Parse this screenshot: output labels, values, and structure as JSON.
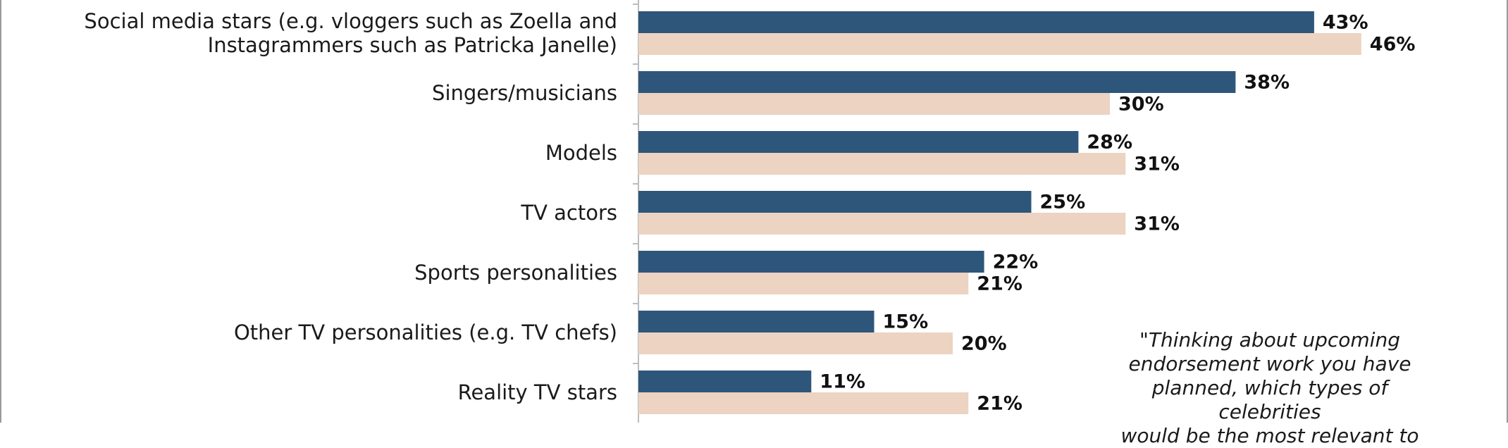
{
  "chart_data": {
    "type": "bar",
    "orientation": "horizontal",
    "categories": [
      [
        "Social media stars (e.g. vloggers such as Zoella and",
        "Instagrammers such as Patricka Janelle)"
      ],
      [
        "Singers/musicians"
      ],
      [
        "Models"
      ],
      [
        "TV actors"
      ],
      [
        "Sports personalities"
      ],
      [
        "Other TV personalities (e.g. TV chefs)"
      ],
      [
        "Reality TV stars"
      ]
    ],
    "series": [
      {
        "color": "#2e567a",
        "values": [
          43,
          38,
          28,
          25,
          22,
          15,
          11
        ]
      },
      {
        "color": "#ecd3c2",
        "values": [
          46,
          30,
          31,
          31,
          21,
          20,
          21
        ]
      }
    ],
    "value_format": "{v}%",
    "xlim": [
      0,
      100
    ],
    "grid": false,
    "legend": "none",
    "annotation": "\"Thinking about upcoming\nendorsement work you have\nplanned, which types of celebrities\nwould be the most relevant to"
  }
}
